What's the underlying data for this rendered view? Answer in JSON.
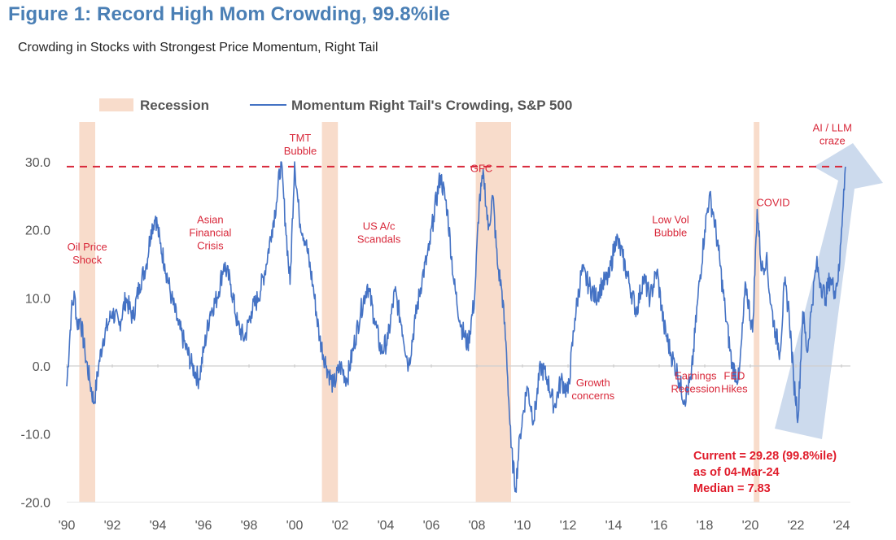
{
  "header": {
    "title": "Figure 1: Record High Mom Crowding, 99.8%ile",
    "subtitle": "Crowding in Stocks with Strongest Price Momentum, Right Tail"
  },
  "chart_data": {
    "type": "line",
    "title": "Figure 1: Record High Mom Crowding, 99.8%ile",
    "subtitle": "Crowding in Stocks with Strongest Price Momentum, Right Tail",
    "xlabel": "",
    "ylabel": "",
    "xlim": [
      1990,
      2024.2
    ],
    "ylim": [
      -20,
      30
    ],
    "yticks": [
      30,
      20,
      10,
      0,
      -10,
      -20
    ],
    "ytick_labels": [
      "30.0",
      "20.0",
      "10.0",
      "0.0",
      "-10.0",
      "-20.0"
    ],
    "xticks": [
      1990,
      1992,
      1994,
      1996,
      1998,
      2000,
      2002,
      2004,
      2006,
      2008,
      2010,
      2012,
      2014,
      2016,
      2018,
      2020,
      2022,
      2024
    ],
    "xtick_labels": [
      "'90",
      "'92",
      "'94",
      "'96",
      "'98",
      "'00",
      "'02",
      "'04",
      "'06",
      "'08",
      "'10",
      "'12",
      "'14",
      "'16",
      "'18",
      "'20",
      "'22",
      "'24"
    ],
    "grid": false,
    "legend": {
      "placement": "top-left",
      "entries": [
        {
          "name": "Recession",
          "kind": "band",
          "color": "#f8dccb"
        },
        {
          "name": "Momentum Right Tail's Crowding, S&P 500",
          "kind": "line",
          "color": "#4472c4"
        }
      ]
    },
    "reference_line": {
      "y": 29.3,
      "style": "dashed",
      "color": "#d8283a"
    },
    "recessions": [
      {
        "start": 1990.55,
        "end": 1991.25
      },
      {
        "start": 2001.2,
        "end": 2001.9
      },
      {
        "start": 2007.95,
        "end": 2009.5
      },
      {
        "start": 2020.15,
        "end": 2020.4
      }
    ],
    "series": [
      {
        "name": "Momentum Right Tail's Crowding, S&P 500",
        "color": "#4472c4",
        "x": [
          1990.0,
          1990.2,
          1990.35,
          1990.45,
          1990.6,
          1990.8,
          1991.0,
          1991.2,
          1991.4,
          1991.6,
          1991.8,
          1992.0,
          1992.3,
          1992.6,
          1992.9,
          1993.2,
          1993.5,
          1993.7,
          1993.9,
          1994.1,
          1994.3,
          1994.6,
          1994.9,
          1995.2,
          1995.5,
          1995.8,
          1996.0,
          1996.3,
          1996.6,
          1996.9,
          1997.2,
          1997.5,
          1997.8,
          1998.1,
          1998.4,
          1998.7,
          1999.0,
          1999.2,
          1999.4,
          1999.6,
          1999.8,
          2000.0,
          2000.2,
          2000.5,
          2000.8,
          2001.1,
          2001.4,
          2001.7,
          2002.0,
          2002.3,
          2002.6,
          2002.9,
          2003.2,
          2003.5,
          2003.8,
          2004.1,
          2004.4,
          2004.7,
          2005.0,
          2005.3,
          2005.6,
          2005.9,
          2006.1,
          2006.4,
          2006.7,
          2007.0,
          2007.3,
          2007.6,
          2007.9,
          2008.1,
          2008.3,
          2008.5,
          2008.7,
          2008.9,
          2009.1,
          2009.3,
          2009.5,
          2009.7,
          2009.9,
          2010.2,
          2010.5,
          2010.8,
          2011.1,
          2011.4,
          2011.7,
          2012.0,
          2012.3,
          2012.6,
          2012.9,
          2013.2,
          2013.5,
          2013.8,
          2014.1,
          2014.4,
          2014.7,
          2015.0,
          2015.3,
          2015.6,
          2015.9,
          2016.2,
          2016.5,
          2016.8,
          2017.1,
          2017.4,
          2017.7,
          2018.0,
          2018.2,
          2018.4,
          2018.6,
          2018.9,
          2019.2,
          2019.5,
          2019.8,
          2020.1,
          2020.3,
          2020.5,
          2020.7,
          2020.9,
          2021.1,
          2021.3,
          2021.5,
          2021.7,
          2021.9,
          2022.1,
          2022.3,
          2022.5,
          2022.7,
          2022.9,
          2023.1,
          2023.3,
          2023.5,
          2023.7,
          2023.9,
          2024.0,
          2024.1,
          2024.17
        ],
        "y": [
          -3,
          8,
          10.5,
          6,
          7,
          2,
          -2,
          -5.5,
          0,
          4,
          6,
          8,
          6,
          10,
          7,
          12,
          15,
          20,
          22,
          18,
          15,
          10,
          6,
          3,
          0,
          -2,
          2,
          8,
          10,
          15,
          12,
          6,
          4,
          8,
          10,
          14,
          20,
          24,
          30,
          21,
          12,
          30,
          22,
          18,
          12,
          4,
          0,
          -3,
          0,
          -2,
          3,
          8,
          12,
          7,
          2,
          4,
          11,
          6,
          0,
          7,
          13,
          17,
          22,
          28,
          23,
          12,
          6,
          3,
          10,
          24,
          28,
          20,
          25,
          15,
          11,
          2,
          -12,
          -18,
          -10,
          -3,
          -8,
          0,
          -2,
          -6,
          -2,
          -4,
          7,
          14,
          12,
          10,
          12,
          13,
          19,
          16,
          12,
          8,
          13,
          10,
          14,
          6,
          2,
          -1,
          -5,
          -2,
          10,
          20,
          25,
          22,
          17,
          8,
          0,
          -2,
          12,
          5,
          23,
          14,
          16,
          9,
          5,
          2,
          12,
          8,
          -2,
          -7.5,
          8,
          2,
          9,
          15,
          12,
          10,
          13,
          11,
          14,
          20,
          26,
          29.28
        ]
      }
    ],
    "annotations": [
      {
        "text": "Oil Price\nShock",
        "x": 1990.9,
        "y": 17
      },
      {
        "text": "Asian\nFinancial\nCrisis",
        "x": 1996.3,
        "y": 21
      },
      {
        "text": "TMT\nBubble",
        "x": 2000.25,
        "y": 33
      },
      {
        "text": "US A/c\nScandals",
        "x": 2003.7,
        "y": 20
      },
      {
        "text": "GFC",
        "x": 2008.2,
        "y": 28.5
      },
      {
        "text": "Growth\nconcerns",
        "x": 2013.1,
        "y": -3
      },
      {
        "text": "Low Vol\nBubble",
        "x": 2016.5,
        "y": 21
      },
      {
        "text": "Earnings\nRecession",
        "x": 2017.6,
        "y": -2
      },
      {
        "text": "FED\nHikes",
        "x": 2019.3,
        "y": -2
      },
      {
        "text": "COVID",
        "x": 2021.0,
        "y": 23.5
      },
      {
        "text": "AI / LLM\ncraze",
        "x": 2023.6,
        "y": 34.5
      }
    ],
    "stats": {
      "current": "Current = 29.28 (99.8%ile)",
      "as_of": "as of 04-Mar-24",
      "median": "Median = 7.83",
      "current_value": 29.28,
      "current_percentile": 99.8,
      "median_value": 7.83,
      "date": "04-Mar-24"
    }
  }
}
